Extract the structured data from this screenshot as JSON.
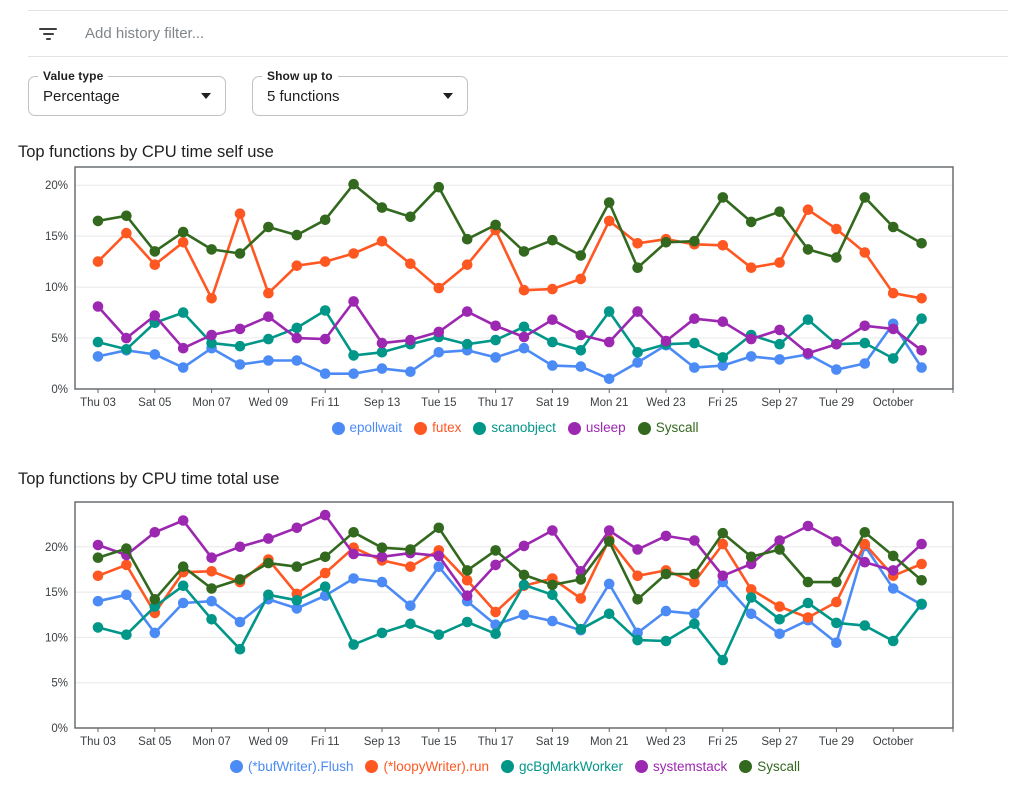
{
  "header": {
    "filter_icon": "filter-list",
    "filter_placeholder": "Add history filter..."
  },
  "controls": {
    "value_type": {
      "label": "Value type",
      "value": "Percentage",
      "icon": "arrow-drop-down"
    },
    "show_up_to": {
      "label": "Show up to",
      "value": "5 functions",
      "icon": "arrow-drop-down"
    }
  },
  "chart_data": [
    {
      "type": "line",
      "title": "Top functions by CPU time self use",
      "y_unit": "%",
      "y_ticks": [
        0,
        5,
        10,
        15,
        20
      ],
      "ylim": [
        0,
        21.8
      ],
      "grid": true,
      "legend_position": "bottom",
      "x_tick_labels": [
        "Thu 03",
        "Sat 05",
        "Mon 07",
        "Wed 09",
        "Fri 11",
        "Sep 13",
        "Tue 15",
        "Thu 17",
        "Sat 19",
        "Mon 21",
        "Wed 23",
        "Fri 25",
        "Sep 27",
        "Tue 29",
        "October"
      ],
      "x_tick_indices": [
        0,
        2,
        4,
        6,
        8,
        10,
        12,
        14,
        16,
        18,
        20,
        22,
        24,
        26,
        28
      ],
      "series": [
        {
          "name": "epollwait",
          "color": "#4c8bf5",
          "values": [
            3.2,
            3.8,
            3.4,
            2.1,
            4.0,
            2.4,
            2.8,
            2.8,
            1.5,
            1.5,
            2.0,
            1.7,
            3.6,
            3.8,
            3.1,
            4.0,
            2.3,
            2.2,
            1.0,
            2.6,
            4.3,
            2.1,
            2.3,
            3.2,
            2.9,
            3.4,
            1.9,
            2.5,
            6.4,
            2.1
          ]
        },
        {
          "name": "futex",
          "color": "#ff5722",
          "values": [
            12.5,
            15.3,
            12.2,
            14.4,
            8.9,
            17.2,
            9.4,
            12.1,
            12.5,
            13.3,
            14.5,
            12.3,
            9.9,
            12.2,
            15.6,
            9.7,
            9.8,
            10.8,
            16.5,
            14.3,
            14.7,
            14.2,
            14.1,
            11.9,
            12.4,
            17.6,
            15.7,
            13.4,
            9.4,
            8.9
          ]
        },
        {
          "name": "scanobject",
          "color": "#009688",
          "values": [
            4.6,
            3.9,
            6.5,
            7.5,
            4.5,
            4.2,
            4.9,
            6.0,
            7.7,
            3.3,
            3.6,
            4.4,
            5.1,
            4.4,
            4.8,
            6.1,
            4.6,
            3.8,
            7.6,
            3.6,
            4.4,
            4.5,
            3.1,
            5.3,
            4.4,
            6.8,
            4.4,
            4.5,
            3.0,
            6.9
          ]
        },
        {
          "name": "usleep",
          "color": "#9c27b0",
          "values": [
            8.1,
            5.0,
            7.2,
            4.0,
            5.3,
            5.9,
            7.1,
            5.0,
            4.9,
            8.6,
            4.5,
            4.8,
            5.6,
            7.6,
            6.2,
            5.1,
            6.8,
            5.3,
            4.6,
            7.6,
            4.7,
            6.9,
            6.6,
            4.9,
            5.8,
            3.5,
            4.4,
            6.2,
            5.9,
            3.8
          ]
        },
        {
          "name": "Syscall",
          "color": "#33691e",
          "values": [
            16.5,
            17.0,
            13.5,
            15.4,
            13.7,
            13.3,
            15.9,
            15.1,
            16.6,
            20.1,
            17.8,
            16.9,
            19.8,
            14.7,
            16.1,
            13.5,
            14.6,
            13.1,
            18.3,
            11.9,
            14.4,
            14.5,
            18.8,
            16.4,
            17.4,
            13.7,
            12.9,
            18.8,
            15.9,
            14.3
          ]
        }
      ]
    },
    {
      "type": "line",
      "title": "Top functions by CPU time total use",
      "y_unit": "%",
      "y_ticks": [
        0,
        5,
        10,
        15,
        20
      ],
      "ylim": [
        0,
        24.9
      ],
      "grid": true,
      "legend_position": "bottom",
      "x_tick_labels": [
        "Thu 03",
        "Sat 05",
        "Mon 07",
        "Wed 09",
        "Fri 11",
        "Sep 13",
        "Tue 15",
        "Thu 17",
        "Sat 19",
        "Mon 21",
        "Wed 23",
        "Fri 25",
        "Sep 27",
        "Tue 29",
        "October"
      ],
      "x_tick_indices": [
        0,
        2,
        4,
        6,
        8,
        10,
        12,
        14,
        16,
        18,
        20,
        22,
        24,
        26,
        28
      ],
      "series": [
        {
          "name": "(*bufWriter).Flush",
          "color": "#4c8bf5",
          "values": [
            14.0,
            14.7,
            10.5,
            13.8,
            14.0,
            11.7,
            14.2,
            13.2,
            14.6,
            16.5,
            16.1,
            13.5,
            17.8,
            14.0,
            11.4,
            12.5,
            11.8,
            10.8,
            15.9,
            10.5,
            12.9,
            12.6,
            16.1,
            12.6,
            10.4,
            11.9,
            9.4,
            20.1,
            15.4,
            13.6
          ]
        },
        {
          "name": "(*loopyWriter).run",
          "color": "#ff5722",
          "values": [
            16.8,
            18.0,
            12.7,
            17.2,
            17.3,
            16.1,
            18.6,
            14.8,
            17.1,
            19.9,
            18.5,
            17.8,
            19.6,
            16.3,
            12.8,
            15.7,
            16.5,
            14.3,
            20.8,
            16.8,
            17.4,
            16.1,
            20.3,
            15.3,
            13.4,
            12.2,
            13.9,
            20.3,
            16.8,
            18.1
          ]
        },
        {
          "name": "gcBgMarkWorker",
          "color": "#009688",
          "values": [
            11.1,
            10.3,
            13.4,
            15.7,
            12.0,
            8.7,
            14.7,
            14.1,
            15.6,
            9.2,
            10.5,
            11.5,
            10.3,
            11.7,
            10.4,
            15.8,
            14.7,
            10.9,
            12.6,
            9.7,
            9.6,
            11.5,
            7.5,
            14.4,
            12.0,
            13.8,
            11.6,
            11.3,
            9.6,
            13.7
          ]
        },
        {
          "name": "systemstack",
          "color": "#9c27b0",
          "values": [
            20.2,
            19.1,
            21.6,
            22.9,
            18.8,
            20.0,
            20.9,
            22.1,
            23.5,
            19.2,
            18.9,
            19.3,
            19.0,
            14.6,
            18.0,
            20.1,
            21.8,
            17.3,
            21.8,
            19.7,
            21.2,
            20.7,
            16.8,
            18.1,
            20.7,
            22.3,
            20.6,
            18.3,
            17.4,
            20.3
          ]
        },
        {
          "name": "Syscall",
          "color": "#33691e",
          "values": [
            18.8,
            19.8,
            14.2,
            17.8,
            15.4,
            16.4,
            18.2,
            17.8,
            18.9,
            21.6,
            19.9,
            19.7,
            22.1,
            17.4,
            19.6,
            16.9,
            15.8,
            16.4,
            20.6,
            14.2,
            17.0,
            17.0,
            21.5,
            18.9,
            19.7,
            16.1,
            16.1,
            21.6,
            19.0,
            16.3
          ]
        }
      ]
    }
  ]
}
